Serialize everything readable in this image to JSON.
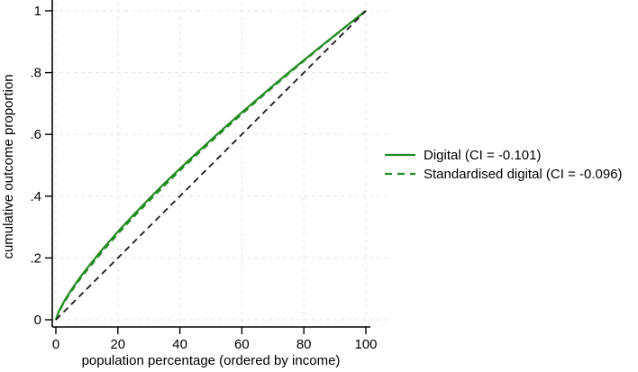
{
  "figure": {
    "kind": "concentration-curve-plot",
    "background": "#ffffff"
  },
  "colors": {
    "series_green": "#228b22",
    "equality_black": "#1a1a1a",
    "grid": "#e4e4e4",
    "axis": "#000000"
  },
  "chart_data": {
    "type": "line",
    "title": "",
    "xlabel": "population percentage (ordered by income)",
    "ylabel": "cumulative outcome proportion",
    "xlim": [
      0,
      100
    ],
    "ylim": [
      0,
      1
    ],
    "x_ticks": [
      0,
      20,
      40,
      60,
      80,
      100
    ],
    "x_tick_labels": [
      "0",
      "20",
      "40",
      "60",
      "80",
      "100"
    ],
    "y_ticks": [
      0,
      0.2,
      0.4,
      0.6,
      0.8,
      1
    ],
    "y_tick_labels": [
      "0",
      ".2",
      ".4",
      ".6",
      ".8",
      "1"
    ],
    "grid": "dashed light-gray horizontal and vertical at every tick",
    "legend_position": "outside-right-middle",
    "series": [
      {
        "name": "Digital (CI = -0.101)",
        "color": "#228b22",
        "style": "solid",
        "width": 2.2,
        "in_legend": true,
        "x": [
          0,
          1,
          2,
          3,
          5,
          7.5,
          10,
          15,
          20,
          25,
          30,
          35,
          40,
          45,
          50,
          55,
          60,
          65,
          70,
          75,
          80,
          85,
          90,
          95,
          100
        ],
        "y": [
          0,
          0.028,
          0.047,
          0.065,
          0.097,
          0.133,
          0.166,
          0.228,
          0.285,
          0.339,
          0.391,
          0.441,
          0.489,
          0.536,
          0.582,
          0.627,
          0.671,
          0.714,
          0.757,
          0.799,
          0.84,
          0.881,
          0.921,
          0.961,
          1
        ]
      },
      {
        "name": "Standardised digital (CI = -0.096)",
        "color": "#228b22",
        "style": "dashed",
        "width": 2.2,
        "in_legend": true,
        "x": [
          0,
          1,
          2,
          3,
          5,
          7.5,
          10,
          15,
          20,
          25,
          30,
          35,
          40,
          45,
          50,
          55,
          60,
          65,
          70,
          75,
          80,
          85,
          90,
          95,
          100
        ],
        "y": [
          0,
          0.026,
          0.045,
          0.062,
          0.092,
          0.128,
          0.16,
          0.221,
          0.278,
          0.332,
          0.384,
          0.434,
          0.483,
          0.53,
          0.576,
          0.622,
          0.666,
          0.71,
          0.753,
          0.796,
          0.838,
          0.879,
          0.92,
          0.96,
          1
        ]
      },
      {
        "name": "line of equality",
        "color": "#1a1a1a",
        "style": "dashed",
        "width": 1.8,
        "in_legend": false,
        "x": [
          0,
          100
        ],
        "y": [
          0,
          1
        ]
      }
    ]
  },
  "legend": {
    "items": [
      {
        "label": "Digital (CI = -0.101)",
        "sample": "solid-green-line"
      },
      {
        "label": "Standardised digital (CI = -0.096)",
        "sample": "dashed-green-line"
      }
    ]
  }
}
